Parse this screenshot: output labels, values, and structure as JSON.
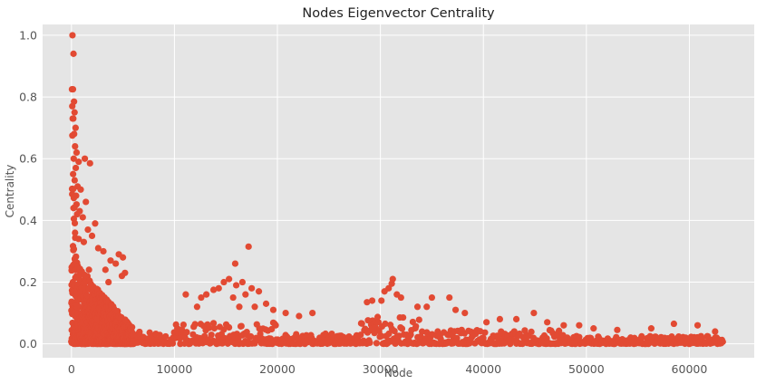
{
  "chart_data": {
    "type": "scatter",
    "title": "Nodes Eigenvector Centrality",
    "xlabel": "Node",
    "ylabel": "Centrality",
    "xlim": [
      -2800,
      66300
    ],
    "ylim": [
      -0.045,
      1.035
    ],
    "x_ticks": [
      0,
      10000,
      20000,
      30000,
      40000,
      50000,
      60000
    ],
    "y_ticks": [
      0.0,
      0.2,
      0.4,
      0.6,
      0.8,
      1.0
    ],
    "x_tick_labels": [
      "0",
      "10000",
      "20000",
      "30000",
      "40000",
      "50000",
      "60000"
    ],
    "y_tick_labels": [
      "0.0",
      "0.2",
      "0.4",
      "0.6",
      "0.8",
      "1.0"
    ],
    "grid": true,
    "legend": "none",
    "marker_color": "#E24A33",
    "background_color": "#E5E5E5",
    "grid_color": "#FFFFFF",
    "points": [
      [
        100,
        1.0
      ],
      [
        200,
        0.94
      ],
      [
        50,
        0.825
      ],
      [
        150,
        0.825
      ],
      [
        250,
        0.785
      ],
      [
        80,
        0.77
      ],
      [
        300,
        0.75
      ],
      [
        180,
        0.73
      ],
      [
        120,
        0.73
      ],
      [
        400,
        0.7
      ],
      [
        260,
        0.68
      ],
      [
        90,
        0.675
      ],
      [
        350,
        0.64
      ],
      [
        500,
        0.62
      ],
      [
        220,
        0.6
      ],
      [
        1300,
        0.6
      ],
      [
        1800,
        0.585
      ],
      [
        700,
        0.59
      ],
      [
        420,
        0.57
      ],
      [
        160,
        0.55
      ],
      [
        310,
        0.53
      ],
      [
        600,
        0.51
      ],
      [
        900,
        0.5
      ],
      [
        450,
        0.48
      ],
      [
        1400,
        0.46
      ],
      [
        200,
        0.44
      ],
      [
        800,
        0.43
      ],
      [
        550,
        0.42
      ],
      [
        1100,
        0.41
      ],
      [
        2300,
        0.39
      ],
      [
        1600,
        0.37
      ],
      [
        350,
        0.36
      ],
      [
        2000,
        0.35
      ],
      [
        700,
        0.34
      ],
      [
        1200,
        0.33
      ],
      [
        2600,
        0.31
      ],
      [
        3100,
        0.3
      ],
      [
        4600,
        0.29
      ],
      [
        5000,
        0.28
      ],
      [
        3800,
        0.27
      ],
      [
        4300,
        0.26
      ],
      [
        1700,
        0.24
      ],
      [
        3300,
        0.24
      ],
      [
        5200,
        0.23
      ],
      [
        4900,
        0.22
      ],
      [
        3600,
        0.2
      ],
      [
        17200,
        0.315
      ],
      [
        15900,
        0.26
      ],
      [
        16600,
        0.2
      ],
      [
        15300,
        0.21
      ],
      [
        16000,
        0.19
      ],
      [
        14800,
        0.2
      ],
      [
        14300,
        0.18
      ],
      [
        13800,
        0.175
      ],
      [
        17500,
        0.18
      ],
      [
        18200,
        0.17
      ],
      [
        16900,
        0.16
      ],
      [
        15700,
        0.15
      ],
      [
        13100,
        0.16
      ],
      [
        12600,
        0.15
      ],
      [
        18900,
        0.13
      ],
      [
        17800,
        0.12
      ],
      [
        16300,
        0.12
      ],
      [
        11100,
        0.16
      ],
      [
        12200,
        0.12
      ],
      [
        19600,
        0.11
      ],
      [
        20800,
        0.1
      ],
      [
        22100,
        0.09
      ],
      [
        23400,
        0.1
      ],
      [
        31200,
        0.21
      ],
      [
        31100,
        0.195
      ],
      [
        30800,
        0.18
      ],
      [
        30400,
        0.17
      ],
      [
        31600,
        0.16
      ],
      [
        32000,
        0.15
      ],
      [
        30100,
        0.14
      ],
      [
        35000,
        0.15
      ],
      [
        36700,
        0.15
      ],
      [
        34500,
        0.12
      ],
      [
        33600,
        0.12
      ],
      [
        29200,
        0.14
      ],
      [
        28700,
        0.135
      ],
      [
        38200,
        0.1
      ],
      [
        37300,
        0.11
      ],
      [
        44900,
        0.1
      ],
      [
        43200,
        0.08
      ],
      [
        41600,
        0.08
      ],
      [
        40300,
        0.07
      ],
      [
        46200,
        0.07
      ],
      [
        47800,
        0.06
      ],
      [
        49300,
        0.06
      ],
      [
        50700,
        0.05
      ],
      [
        53000,
        0.045
      ],
      [
        56300,
        0.05
      ],
      [
        58500,
        0.065
      ],
      [
        60800,
        0.06
      ],
      [
        62500,
        0.04
      ]
    ]
  }
}
